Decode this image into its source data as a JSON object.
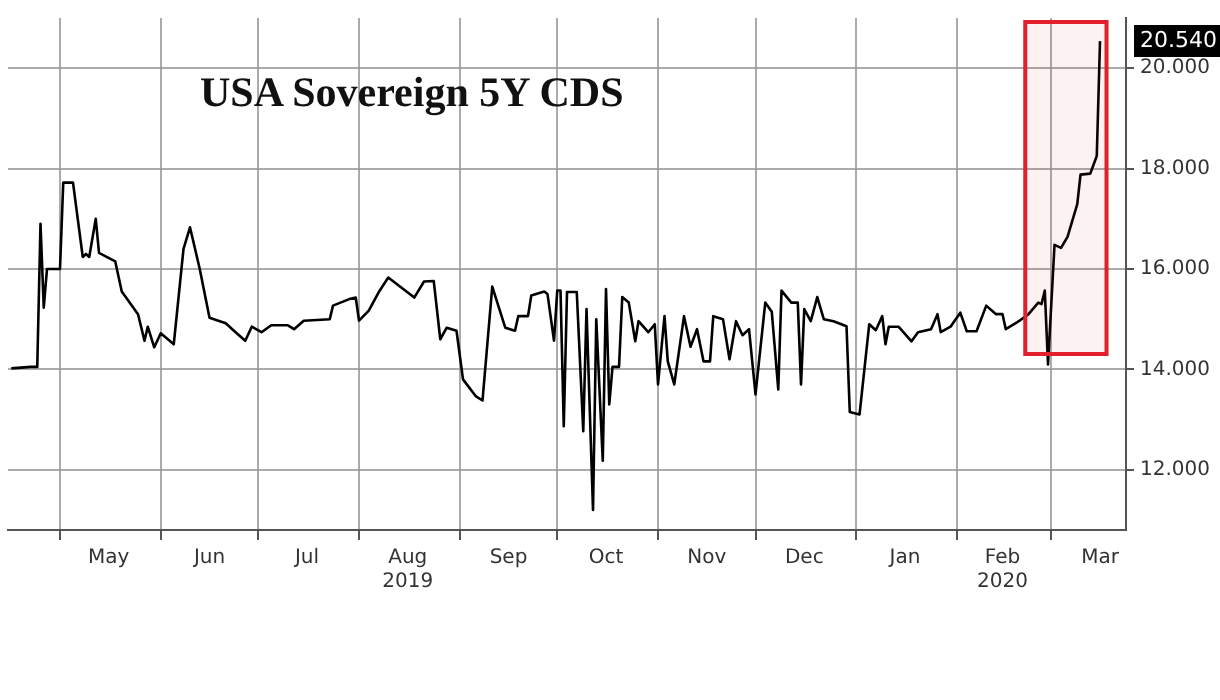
{
  "chart_data": {
    "type": "line",
    "title": "USA Sovereign 5Y CDS",
    "x": [
      "2019-04-16",
      "2019-04-22",
      "2019-04-24",
      "2019-04-25",
      "2019-04-26",
      "2019-04-27",
      "2019-05-01",
      "2019-05-02",
      "2019-05-05",
      "2019-05-08",
      "2019-05-09",
      "2019-05-10",
      "2019-05-12",
      "2019-05-13",
      "2019-05-18",
      "2019-05-20",
      "2019-05-25",
      "2019-05-27",
      "2019-05-28",
      "2019-05-30",
      "2019-06-01",
      "2019-06-05",
      "2019-06-08",
      "2019-06-10",
      "2019-06-13",
      "2019-06-16",
      "2019-06-21",
      "2019-06-23",
      "2019-06-27",
      "2019-06-29",
      "2019-07-02",
      "2019-07-05",
      "2019-07-10",
      "2019-07-12",
      "2019-07-15",
      "2019-07-23",
      "2019-07-24",
      "2019-07-29",
      "2019-07-31",
      "2019-08-01",
      "2019-08-04",
      "2019-08-07",
      "2019-08-10",
      "2019-08-13",
      "2019-08-18",
      "2019-08-21",
      "2019-08-24",
      "2019-08-26",
      "2019-08-28",
      "2019-08-31",
      "2019-09-02",
      "2019-09-06",
      "2019-09-08",
      "2019-09-11",
      "2019-09-15",
      "2019-09-18",
      "2019-09-19",
      "2019-09-22",
      "2019-09-23",
      "2019-09-27",
      "2019-09-28",
      "2019-09-30",
      "2019-10-01",
      "2019-10-02",
      "2019-10-03",
      "2019-10-04",
      "2019-10-07",
      "2019-10-09",
      "2019-10-10",
      "2019-10-12",
      "2019-10-13",
      "2019-10-15",
      "2019-10-16",
      "2019-10-17",
      "2019-10-18",
      "2019-10-20",
      "2019-10-21",
      "2019-10-23",
      "2019-10-25",
      "2019-10-26",
      "2019-10-29",
      "2019-10-31",
      "2019-11-01",
      "2019-11-03",
      "2019-11-04",
      "2019-11-06",
      "2019-11-09",
      "2019-11-11",
      "2019-11-13",
      "2019-11-15",
      "2019-11-17",
      "2019-11-18",
      "2019-11-21",
      "2019-11-23",
      "2019-11-25",
      "2019-11-27",
      "2019-11-29",
      "2019-12-01",
      "2019-12-04",
      "2019-12-06",
      "2019-12-08",
      "2019-12-09",
      "2019-12-12",
      "2019-12-14",
      "2019-12-15",
      "2019-12-16",
      "2019-12-18",
      "2019-12-20",
      "2019-12-22",
      "2019-12-25",
      "2019-12-29",
      "2019-12-30",
      "2020-01-02",
      "2020-01-05",
      "2020-01-07",
      "2020-01-09",
      "2020-01-10",
      "2020-01-11",
      "2020-01-14",
      "2020-01-18",
      "2020-01-20",
      "2020-01-24",
      "2020-01-26",
      "2020-01-27",
      "2020-01-30",
      "2020-02-02",
      "2020-02-04",
      "2020-02-07",
      "2020-02-10",
      "2020-02-13",
      "2020-02-15",
      "2020-02-16",
      "2020-02-20",
      "2020-02-23",
      "2020-02-26",
      "2020-02-27",
      "2020-02-28",
      "2020-02-29",
      "2020-03-02",
      "2020-03-04",
      "2020-03-06",
      "2020-03-09",
      "2020-03-10",
      "2020-03-13",
      "2020-03-15",
      "2020-03-16"
    ],
    "series": [
      {
        "color": "#000000",
        "values": [
          14.02,
          14.05,
          14.05,
          16.9,
          15.23,
          16.0,
          16.0,
          17.72,
          17.72,
          16.24,
          16.3,
          16.24,
          17.0,
          16.32,
          16.15,
          15.55,
          15.1,
          14.57,
          14.85,
          14.44,
          14.72,
          14.5,
          16.4,
          16.83,
          16.0,
          15.03,
          14.92,
          14.8,
          14.57,
          14.85,
          14.74,
          14.88,
          14.88,
          14.8,
          14.97,
          15.0,
          15.27,
          15.4,
          15.43,
          14.97,
          15.17,
          15.53,
          15.83,
          15.68,
          15.43,
          15.75,
          15.76,
          14.6,
          14.83,
          14.77,
          13.8,
          13.46,
          13.38,
          15.65,
          14.83,
          14.77,
          15.06,
          15.06,
          15.47,
          15.55,
          15.5,
          14.57,
          15.57,
          15.57,
          12.87,
          15.54,
          15.54,
          12.77,
          15.2,
          11.2,
          15.0,
          12.18,
          15.6,
          13.3,
          14.05,
          14.05,
          15.44,
          15.33,
          14.56,
          14.96,
          14.74,
          14.9,
          13.7,
          15.06,
          14.16,
          13.7,
          15.06,
          14.45,
          14.8,
          14.16,
          14.16,
          15.06,
          15.0,
          14.2,
          14.96,
          14.68,
          14.8,
          13.5,
          15.33,
          15.15,
          13.6,
          15.57,
          15.33,
          15.33,
          13.7,
          15.2,
          14.96,
          15.44,
          15.0,
          14.96,
          14.86,
          13.15,
          13.1,
          14.9,
          14.78,
          15.06,
          14.5,
          14.85,
          14.85,
          14.56,
          14.74,
          14.8,
          15.1,
          14.74,
          14.85,
          15.13,
          14.76,
          14.76,
          15.27,
          15.1,
          15.1,
          14.8,
          14.96,
          15.1,
          15.33,
          15.3,
          15.57,
          14.1,
          16.48,
          16.42,
          16.64,
          17.29,
          17.88,
          17.9,
          18.25,
          20.54
        ],
        "value_labels": [
          null,
          null,
          null,
          null,
          null,
          null,
          null,
          null,
          null,
          null,
          null,
          null,
          null,
          null,
          null,
          null,
          null,
          null,
          null,
          null,
          null,
          null,
          null,
          null,
          null,
          null,
          null,
          null,
          null,
          null,
          null,
          null,
          null,
          null,
          null,
          null,
          null,
          null,
          null,
          null,
          null,
          null,
          null,
          null,
          null,
          null,
          null,
          null,
          null,
          null,
          null,
          null,
          null,
          null,
          null,
          null,
          null,
          null,
          null,
          null,
          null,
          null,
          null,
          null,
          null,
          null,
          null,
          null,
          null,
          null,
          null,
          null,
          null,
          null,
          null,
          null,
          null,
          null,
          null,
          null,
          null,
          null,
          null,
          null,
          null,
          null,
          null,
          null,
          null,
          null,
          null,
          null,
          null,
          null,
          null,
          null,
          null,
          null,
          null,
          null,
          null,
          null,
          null,
          null,
          null,
          null,
          null,
          null,
          null,
          null,
          null,
          null,
          null,
          null,
          null,
          null,
          null,
          null,
          null,
          null,
          null,
          null,
          null,
          null,
          null,
          null,
          null,
          null,
          null,
          null,
          null,
          null,
          null,
          null,
          null,
          null,
          null,
          null,
          null,
          null,
          null,
          null,
          null,
          null,
          null,
          "20.540"
        ]
      }
    ],
    "xlim": [
      "2019-04-15",
      "2020-03-24"
    ],
    "xticks": [
      {
        "value": "2019-05-01",
        "label": null
      },
      {
        "value": "2019-05-16",
        "label": "May"
      },
      {
        "value": "2019-06-01",
        "label": null
      },
      {
        "value": "2019-06-16",
        "label": "Jun"
      },
      {
        "value": "2019-07-01",
        "label": null
      },
      {
        "value": "2019-07-16",
        "label": "Jul"
      },
      {
        "value": "2019-08-01",
        "label": null
      },
      {
        "value": "2019-08-16",
        "label": "Aug\n2019"
      },
      {
        "value": "2019-09-01",
        "label": null
      },
      {
        "value": "2019-09-16",
        "label": "Sep"
      },
      {
        "value": "2019-10-01",
        "label": null
      },
      {
        "value": "2019-10-16",
        "label": "Oct"
      },
      {
        "value": "2019-11-01",
        "label": null
      },
      {
        "value": "2019-11-16",
        "label": "Nov"
      },
      {
        "value": "2019-12-01",
        "label": null
      },
      {
        "value": "2019-12-16",
        "label": "Dec"
      },
      {
        "value": "2020-01-01",
        "label": null
      },
      {
        "value": "2020-01-16",
        "label": "Jan"
      },
      {
        "value": "2020-02-01",
        "label": null
      },
      {
        "value": "2020-02-15",
        "label": "Feb\n2020"
      },
      {
        "value": "2020-03-01",
        "label": null
      },
      {
        "value": "2020-03-16",
        "label": "Mar"
      }
    ],
    "ylim": [
      10.8,
      21
    ],
    "yticks": [
      {
        "value": 12,
        "label": "12.000"
      },
      {
        "value": 14,
        "label": "14.000"
      },
      {
        "value": 16,
        "label": "16.000"
      },
      {
        "value": 18,
        "label": "18.000"
      },
      {
        "value": 20,
        "label": "20.000"
      }
    ],
    "bands": [
      {
        "axis": "x",
        "from": "2020-02-22",
        "to": "2020-03-18",
        "color": "#e0202a"
      }
    ],
    "grid": true,
    "legend": false,
    "marker": "none",
    "line_style": "solid"
  }
}
